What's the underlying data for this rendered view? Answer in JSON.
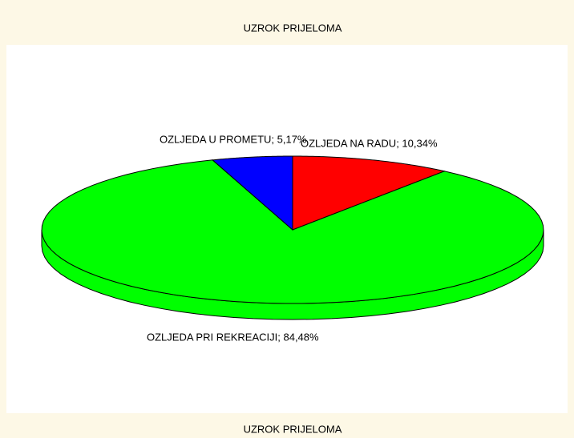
{
  "chart_data": {
    "type": "pie",
    "title": "UZROK PRIJELOMA",
    "xlabel": "UZROK PRIJELOMA",
    "categories": [
      "OZLJEDA NA RADU; 10,34%",
      "OZLJEDA PRI REKREACIJI; 84,48%",
      "OZLJEDA U PROMETU; 5,17%"
    ],
    "values": [
      10.34,
      84.48,
      5.17
    ],
    "colors": [
      "#ff0000",
      "#00ff00",
      "#0000ff"
    ]
  }
}
